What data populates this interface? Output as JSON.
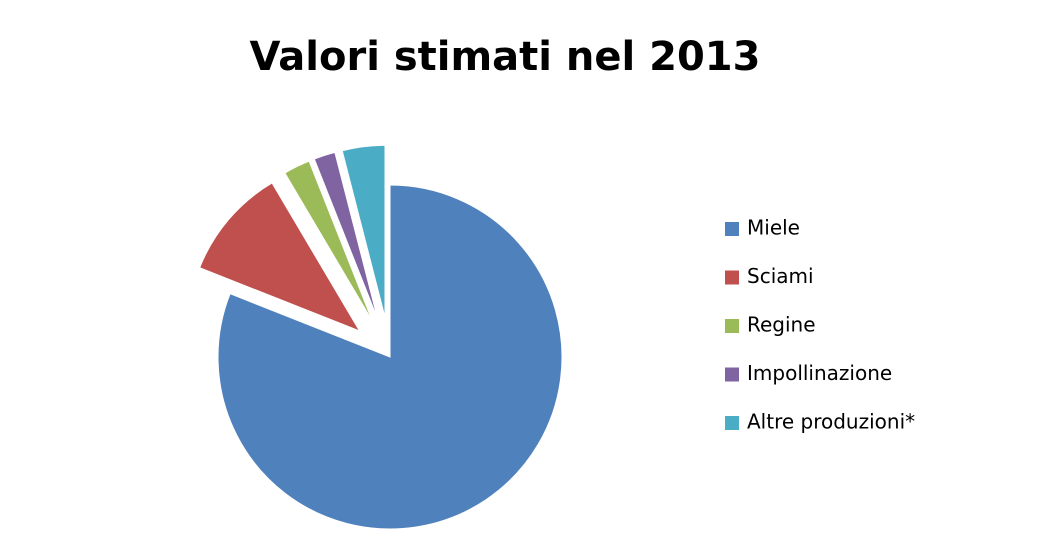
{
  "chart_data": {
    "type": "pie",
    "title": "Valori stimati nel 2013",
    "categories": [
      "Miele",
      "Sciami",
      "Regine",
      "Impollinazione",
      "Altre produzioni*"
    ],
    "values": [
      81,
      10.5,
      2.5,
      2,
      4
    ],
    "colors": [
      "#4f81bd",
      "#c0504d",
      "#9bbb59",
      "#8064a2",
      "#4bacc6"
    ],
    "legend": "right"
  }
}
